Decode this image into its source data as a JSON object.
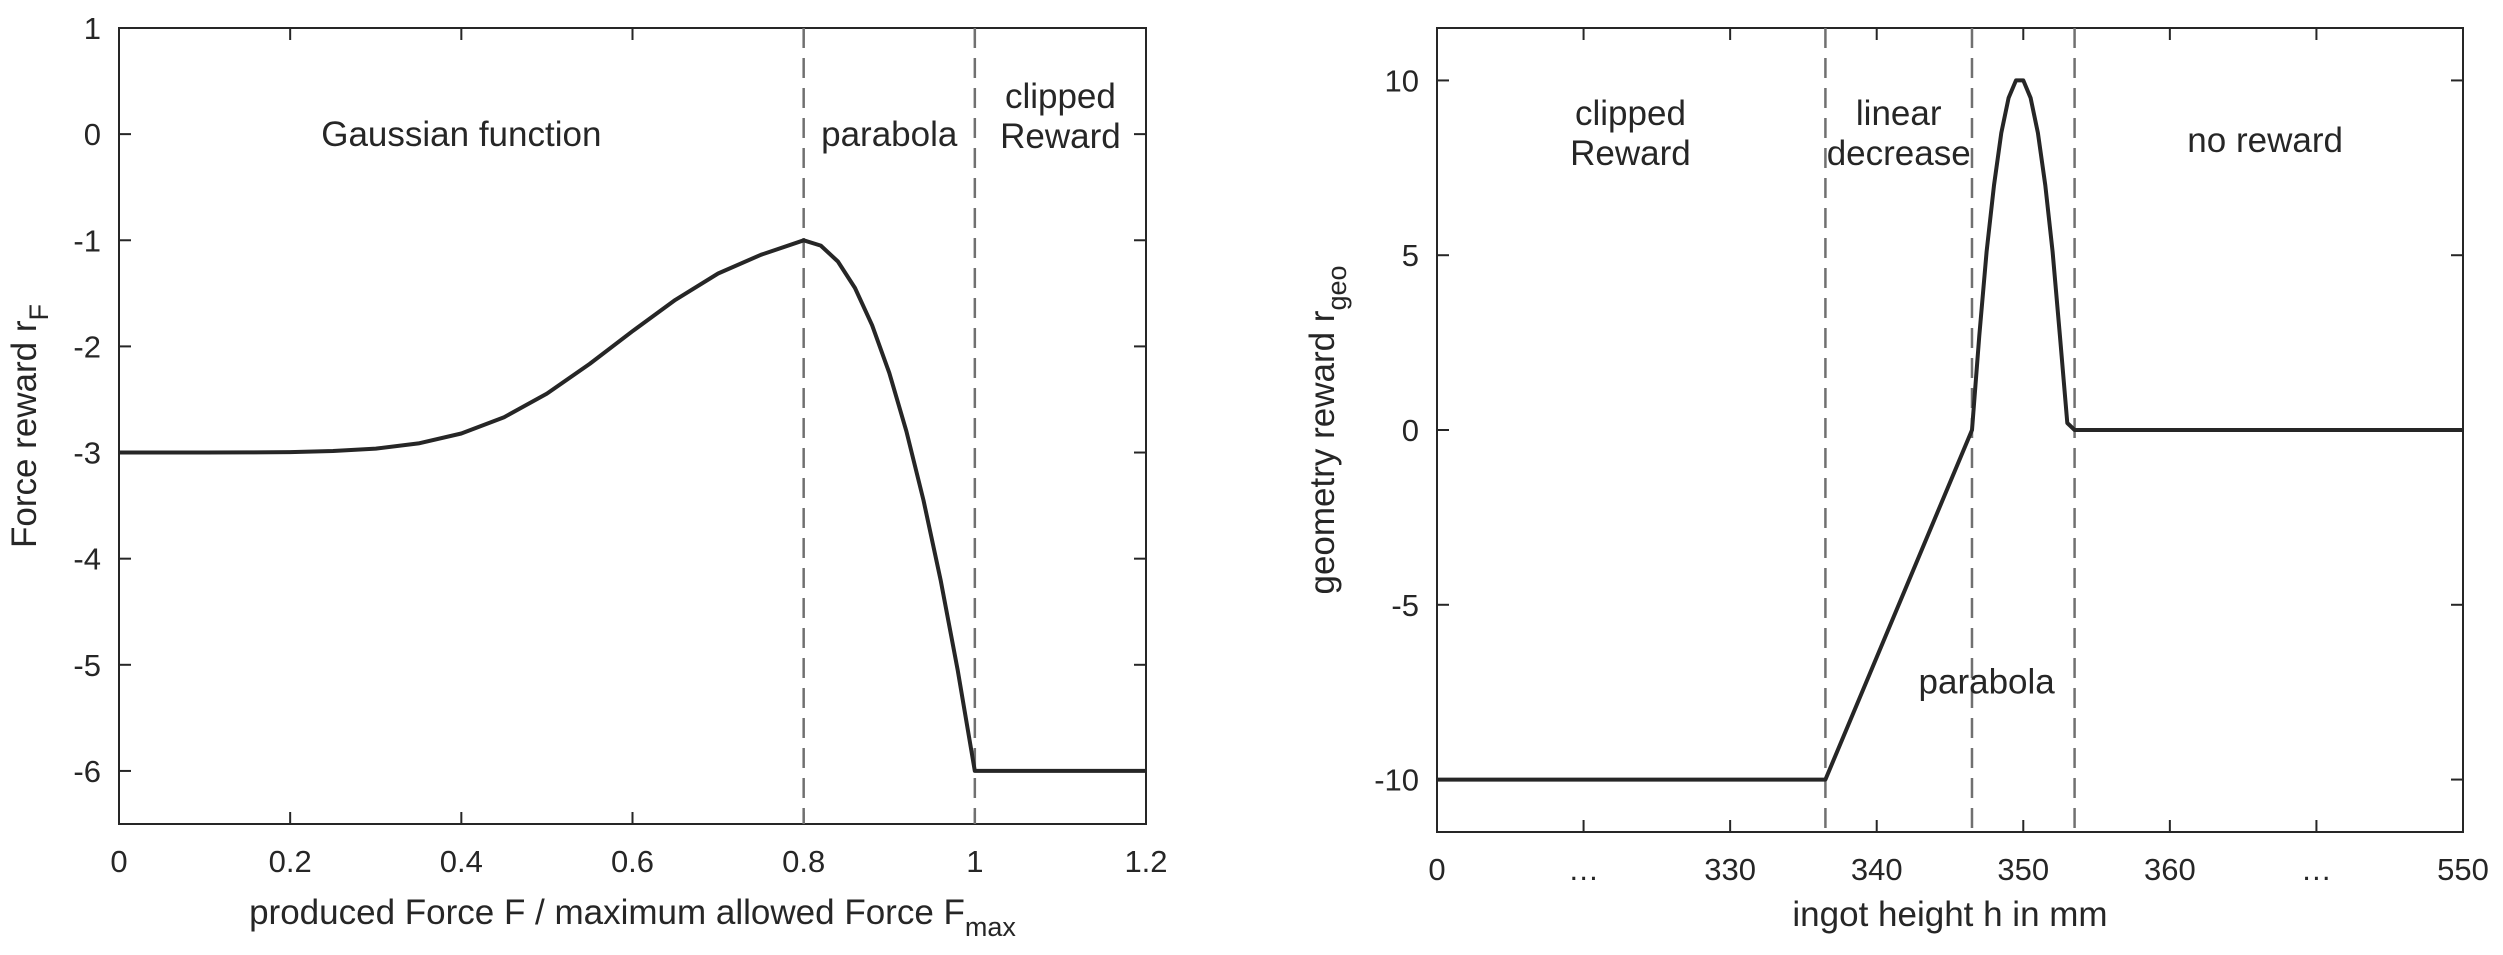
{
  "chart_data": [
    {
      "type": "line",
      "ylabel": "Force reward r",
      "ylabel_sub": "F",
      "xlabel": "produced Force F / maximum allowed Force F",
      "xlabel_sub": "max",
      "xlim": [
        0,
        1.2
      ],
      "ylim": [
        -6.5,
        1
      ],
      "xticks": [
        0,
        0.2,
        0.4,
        0.6,
        0.8,
        1,
        1.2
      ],
      "xtick_labels": [
        "0",
        "0.2",
        "0.4",
        "0.6",
        "0.8",
        "1",
        "1.2"
      ],
      "yticks": [
        1,
        0,
        -1,
        -2,
        -3,
        -4,
        -5,
        -6
      ],
      "ytick_labels": [
        "1",
        "0",
        "-1",
        "-2",
        "-3",
        "-4",
        "-5",
        "-6"
      ],
      "vlines": [
        0.8,
        1.0
      ],
      "regions": [
        {
          "label": [
            "Gaussian function"
          ],
          "x": 0.4,
          "y": 0.0
        },
        {
          "label": [
            "parabola"
          ],
          "x": 0.9,
          "y": 0.0
        },
        {
          "label": [
            "clipped",
            "Reward"
          ],
          "x": 1.1,
          "y": 0.17
        }
      ],
      "series": [
        {
          "x": [
            0,
            0.05,
            0.1,
            0.15,
            0.2,
            0.25,
            0.3,
            0.35,
            0.4,
            0.45,
            0.5,
            0.55,
            0.6,
            0.65,
            0.7,
            0.75,
            0.8,
            0.82,
            0.84,
            0.86,
            0.88,
            0.9,
            0.92,
            0.94,
            0.96,
            0.98,
            1.0,
            1.2
          ],
          "y": [
            -3.0,
            -3.0,
            -3.0,
            -2.999,
            -2.996,
            -2.986,
            -2.963,
            -2.914,
            -2.821,
            -2.667,
            -2.445,
            -2.165,
            -1.857,
            -1.562,
            -1.313,
            -1.137,
            -1.0,
            -1.05,
            -1.2,
            -1.45,
            -1.8,
            -2.25,
            -2.8,
            -3.45,
            -4.2,
            -5.05,
            -6.0,
            -6.0
          ]
        }
      ]
    },
    {
      "type": "line",
      "ylabel": "geometry reward r",
      "ylabel_sub": "geo",
      "xlabel": "ingot height h in mm",
      "xlim": [
        0,
        7
      ],
      "ylim": [
        -11.5,
        11.5
      ],
      "xticks": [
        0,
        1,
        2,
        3,
        4,
        5,
        6,
        7
      ],
      "xtick_labels": [
        "0",
        "…",
        "330",
        "340",
        "350",
        "360",
        "…",
        "550"
      ],
      "yticks": [
        10,
        5,
        0,
        -5,
        -10
      ],
      "ytick_labels": [
        "10",
        "5",
        "0",
        "-5",
        "-10"
      ],
      "vlines": [
        2.65,
        3.65,
        4.35
      ],
      "regions": [
        {
          "label": [
            "clipped",
            "Reward"
          ],
          "x": 1.32,
          "y": 8.5
        },
        {
          "label": [
            "linear",
            "decrease"
          ],
          "x": 3.15,
          "y": 8.5
        },
        {
          "label": [
            "no reward"
          ],
          "x": 5.65,
          "y": 8.3
        },
        {
          "label": [
            "parabola"
          ],
          "x": 3.75,
          "y": -7.2
        }
      ],
      "series": [
        {
          "x": [
            0,
            2.65,
            3.65,
            3.7,
            3.75,
            3.8,
            3.85,
            3.9,
            3.95,
            4.0,
            4.05,
            4.1,
            4.15,
            4.2,
            4.25,
            4.3,
            4.35,
            7.0
          ],
          "y": [
            -10,
            -10,
            0,
            2.7,
            5.1,
            7.0,
            8.5,
            9.5,
            10.0,
            10.0,
            9.5,
            8.5,
            7.0,
            5.1,
            2.7,
            0.2,
            0,
            0
          ]
        }
      ]
    }
  ]
}
